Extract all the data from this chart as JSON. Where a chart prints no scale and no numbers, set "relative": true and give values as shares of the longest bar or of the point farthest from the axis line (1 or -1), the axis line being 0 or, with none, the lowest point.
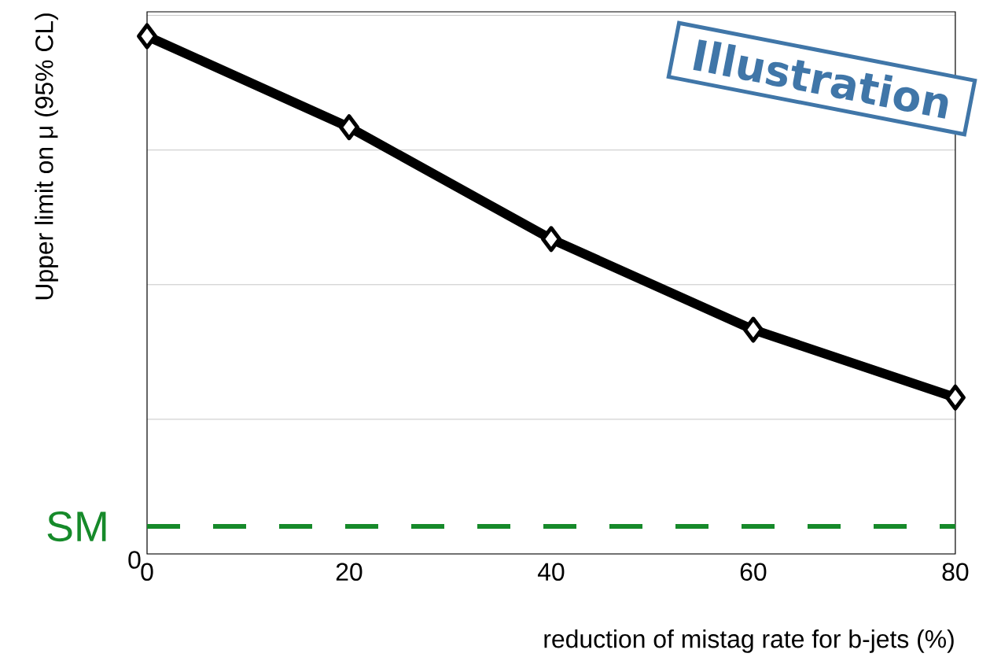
{
  "chart_data": {
    "type": "line",
    "relative": true,
    "xlabel": "reduction of mistag rate for b-jets (%)",
    "ylabel": "Upper limit on μ (95% CL)",
    "x": [
      0,
      20,
      40,
      60,
      80
    ],
    "series": [
      {
        "color": "#000000",
        "values": [
          1,
          0.824,
          0.608,
          0.433,
          0.302
        ]
      }
    ],
    "xlim": [
      0,
      80
    ],
    "xticks": [
      0,
      20,
      40,
      60,
      80
    ],
    "grid": "y",
    "marker": "diamond",
    "line_style": "solid",
    "ref_lines": [
      {
        "axis": "y",
        "value": 0.053,
        "label": "SM",
        "color": "#168a2a",
        "line_style": "dashed"
      }
    ],
    "annotations": [
      "Illustration",
      "0"
    ]
  }
}
